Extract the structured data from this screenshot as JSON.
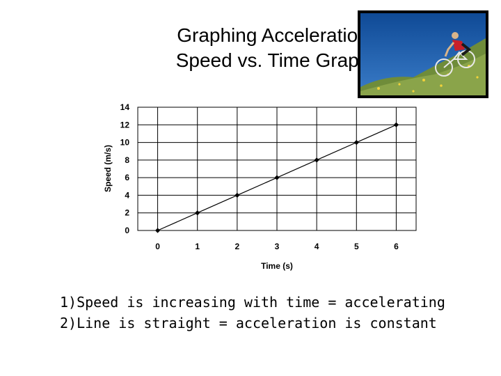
{
  "slide": {
    "title_line1": "Graphing Acceleration",
    "title_line2": "Speed vs. Time Graph",
    "notes": [
      "1)Speed is increasing with time = accelerating",
      "2)Line is straight = acceleration is constant"
    ]
  },
  "photo": {
    "icon": "cyclist-photo",
    "sky_color": "#1a5aa8",
    "grass_color": "#6f8c3a",
    "shirt_color": "#c8202a"
  },
  "chart_data": {
    "type": "line",
    "title": "",
    "xlabel": "Time (s)",
    "ylabel": "Speed (m/s)",
    "x": [
      0,
      1,
      2,
      3,
      4,
      5,
      6
    ],
    "series": [
      {
        "values": [
          0,
          2,
          4,
          6,
          8,
          10,
          12
        ]
      }
    ],
    "xlim": [
      -0.5,
      6.5
    ],
    "ylim": [
      0,
      14
    ],
    "yticks": [
      0,
      2,
      4,
      6,
      8,
      10,
      12,
      14
    ],
    "xticks": [
      0,
      1,
      2,
      3,
      4,
      5,
      6
    ],
    "grid": true,
    "legend": "none",
    "line_color": "#000000",
    "marker": "diamond"
  }
}
